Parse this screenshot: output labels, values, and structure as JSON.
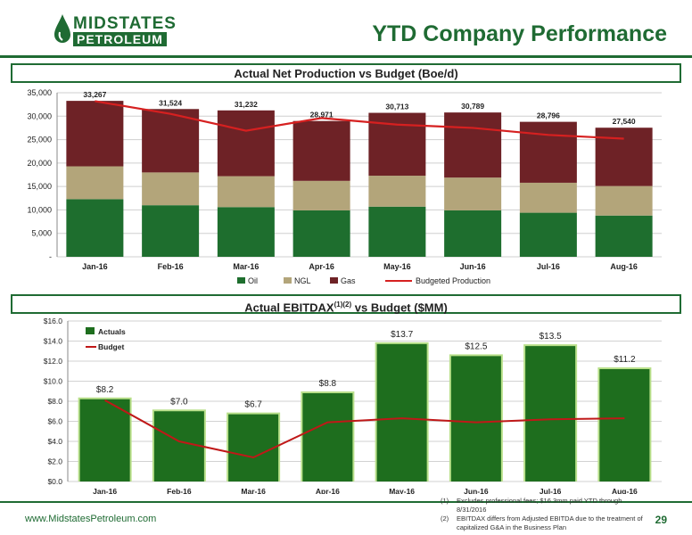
{
  "header": {
    "logo_line1": "MIDSTATES",
    "logo_line2": "PETROLEUM",
    "title": "YTD Company Performance"
  },
  "production_panel": {
    "title": "Actual Net Production vs Budget (Boe/d)"
  },
  "ebitdax_panel": {
    "title_main": "Actual EBITDAX",
    "title_sup": "(1)(2)",
    "title_tail": " vs Budget ($MM)"
  },
  "chart_data": [
    {
      "type": "bar",
      "stacked": true,
      "categories": [
        "Jan-16",
        "Feb-16",
        "Mar-16",
        "Apr-16",
        "May-16",
        "Jun-16",
        "Jul-16",
        "Aug-16"
      ],
      "series": [
        {
          "name": "Oil",
          "color": "#1e6e2e",
          "values": [
            12300,
            11000,
            10600,
            9900,
            10700,
            9900,
            9400,
            8800
          ]
        },
        {
          "name": "NGL",
          "color": "#b3a57a",
          "values": [
            7000,
            7000,
            6600,
            6300,
            6600,
            7000,
            6400,
            6300
          ]
        },
        {
          "name": "Gas",
          "color": "#6e2226",
          "values": [
            13967,
            13524,
            14032,
            12771,
            13413,
            13889,
            12996,
            12440
          ]
        }
      ],
      "totals": [
        "33,267",
        "31,524",
        "31,232",
        "28,971",
        "30,713",
        "30,789",
        "28,796",
        "27,540"
      ],
      "line": {
        "name": "Budgeted Production",
        "color": "#d62020",
        "values": [
          33200,
          30500,
          26900,
          29600,
          28200,
          27500,
          26000,
          25200
        ]
      },
      "yticks": [
        "-",
        "5,000",
        "10,000",
        "15,000",
        "20,000",
        "25,000",
        "30,000",
        "35,000"
      ],
      "ylim": [
        0,
        35000
      ],
      "legend": [
        "Oil",
        "NGL",
        "Gas",
        "Budgeted Production"
      ]
    },
    {
      "type": "bar",
      "categories": [
        "Jan-16",
        "Feb-16",
        "Mar-16",
        "Apr-16",
        "May-16",
        "Jun-16",
        "Jul-16",
        "Aug-16"
      ],
      "series": [
        {
          "name": "Actuals",
          "color": "#1e6e1e",
          "values": [
            8.2,
            7.0,
            6.7,
            8.8,
            13.7,
            12.5,
            13.5,
            11.2
          ]
        }
      ],
      "labels": [
        "$8.2",
        "$7.0",
        "$6.7",
        "$8.8",
        "$13.7",
        "$12.5",
        "$13.5",
        "$11.2"
      ],
      "line": {
        "name": "Budget",
        "color": "#c01818",
        "values": [
          8.1,
          4.0,
          2.4,
          5.9,
          6.3,
          5.9,
          6.2,
          6.3
        ]
      },
      "yticks": [
        "$0.0",
        "$2.0",
        "$4.0",
        "$6.0",
        "$8.0",
        "$10.0",
        "$12.0",
        "$14.0",
        "$16.0"
      ],
      "ylim": [
        0,
        16
      ],
      "legend": [
        "Actuals",
        "Budget"
      ]
    }
  ],
  "footer": {
    "url": "www.MidstatesPetroleum.com",
    "page": "29",
    "note1_num": "(1)",
    "note1": "Excludes professional fees; $16.3mm paid YTD through 8/31/2016",
    "note2_num": "(2)",
    "note2": "EBITDAX differs from Adjusted EBITDA due to the treatment of capitalized G&A in the Business Plan"
  }
}
